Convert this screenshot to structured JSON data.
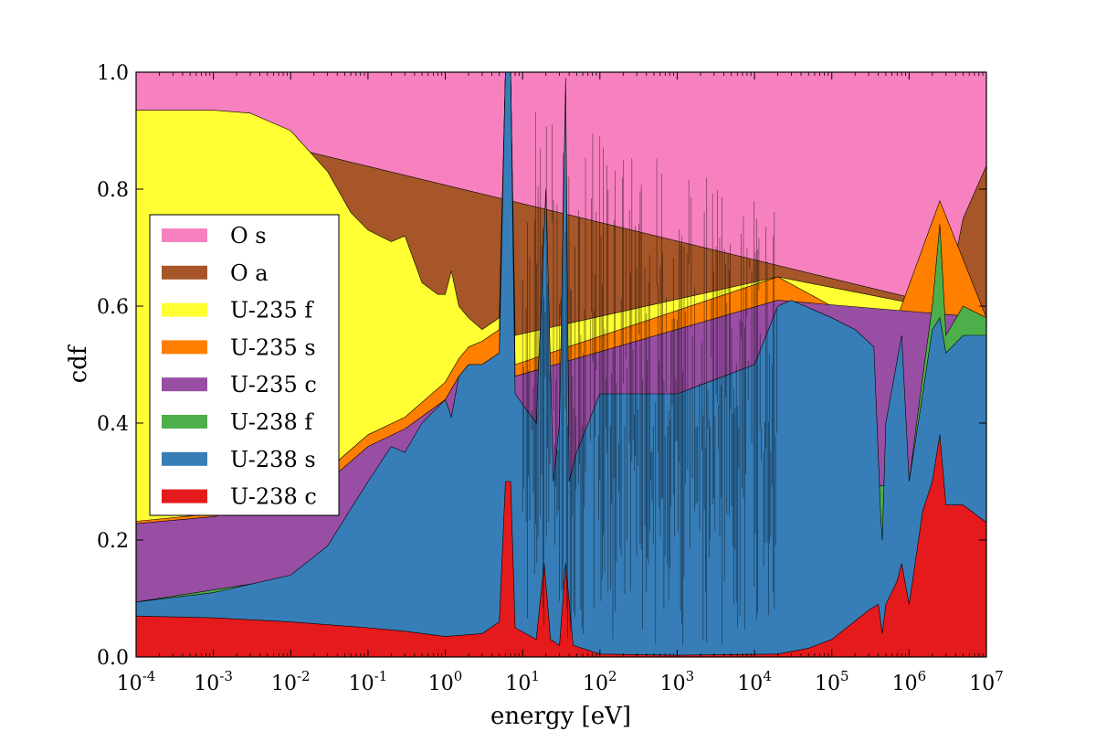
{
  "chart_data": {
    "type": "area",
    "xlabel": "energy [eV]",
    "ylabel": "cdf",
    "xscale": "log",
    "xlim": [
      0.0001,
      10000000
    ],
    "ylim": [
      0.0,
      1.0
    ],
    "x_ticks": [
      {
        "base": "10",
        "exp": "-4",
        "value": 0.0001
      },
      {
        "base": "10",
        "exp": "-3",
        "value": 0.001
      },
      {
        "base": "10",
        "exp": "-2",
        "value": 0.01
      },
      {
        "base": "10",
        "exp": "-1",
        "value": 0.1
      },
      {
        "base": "10",
        "exp": "0",
        "value": 1
      },
      {
        "base": "10",
        "exp": "1",
        "value": 10
      },
      {
        "base": "10",
        "exp": "2",
        "value": 100
      },
      {
        "base": "10",
        "exp": "3",
        "value": 1000
      },
      {
        "base": "10",
        "exp": "4",
        "value": 10000
      },
      {
        "base": "10",
        "exp": "5",
        "value": 100000
      },
      {
        "base": "10",
        "exp": "6",
        "value": 1000000
      },
      {
        "base": "10",
        "exp": "7",
        "value": 10000000
      }
    ],
    "y_ticks": [
      "0.0",
      "0.2",
      "0.4",
      "0.6",
      "0.8",
      "1.0"
    ],
    "y_tick_values": [
      0.0,
      0.2,
      0.4,
      0.6,
      0.8,
      1.0
    ],
    "legend_position": "center-left",
    "legend": [
      {
        "name": "O s",
        "color": "#f781bf"
      },
      {
        "name": "O a",
        "color": "#a65628"
      },
      {
        "name": "U-235 f",
        "color": "#ffff33"
      },
      {
        "name": "U-235 s",
        "color": "#ff7f00"
      },
      {
        "name": "U-235 c",
        "color": "#984ea3"
      },
      {
        "name": "U-238 f",
        "color": "#4daf4a"
      },
      {
        "name": "U-238 s",
        "color": "#377eb8"
      },
      {
        "name": "U-238 c",
        "color": "#e41a1c"
      }
    ],
    "cumulative_boundaries": [
      {
        "upper_of": "U-238 c",
        "color": "#e41a1c",
        "points": [
          [
            0.0001,
            0.07
          ],
          [
            0.001,
            0.067
          ],
          [
            0.01,
            0.06
          ],
          [
            0.1,
            0.05
          ],
          [
            0.3,
            0.044
          ],
          [
            1,
            0.035
          ],
          [
            3,
            0.04
          ],
          [
            5,
            0.06
          ],
          [
            6,
            0.3
          ],
          [
            7,
            0.3
          ],
          [
            8,
            0.05
          ],
          [
            15,
            0.03
          ],
          [
            19,
            0.16
          ],
          [
            23,
            0.03
          ],
          [
            30,
            0.02
          ],
          [
            36,
            0.16
          ],
          [
            45,
            0.02
          ],
          [
            100,
            0.005
          ],
          [
            1000,
            0.003
          ],
          [
            20000,
            0.005
          ],
          [
            50000,
            0.015
          ],
          [
            100000,
            0.03
          ],
          [
            300000,
            0.08
          ],
          [
            400000,
            0.09
          ],
          [
            450000,
            0.04
          ],
          [
            500000,
            0.09
          ],
          [
            700000,
            0.13
          ],
          [
            800000,
            0.16
          ],
          [
            1000000,
            0.09
          ],
          [
            1500000,
            0.25
          ],
          [
            2000000,
            0.3
          ],
          [
            2500000,
            0.38
          ],
          [
            3000000,
            0.26
          ],
          [
            5000000,
            0.26
          ],
          [
            10000000,
            0.23
          ]
        ]
      },
      {
        "upper_of": "U-238 s",
        "color": "#377eb8",
        "points": [
          [
            0.0001,
            0.094
          ],
          [
            0.001,
            0.11
          ],
          [
            0.01,
            0.14
          ],
          [
            0.03,
            0.19
          ],
          [
            0.1,
            0.3
          ],
          [
            0.2,
            0.36
          ],
          [
            0.3,
            0.35
          ],
          [
            0.5,
            0.4
          ],
          [
            1,
            0.44
          ],
          [
            1.2,
            0.41
          ],
          [
            1.5,
            0.48
          ],
          [
            2,
            0.5
          ],
          [
            3,
            0.5
          ],
          [
            5,
            0.52
          ],
          [
            6,
            1.0
          ],
          [
            7,
            1.0
          ],
          [
            8,
            0.45
          ],
          [
            15,
            0.4
          ],
          [
            20,
            0.8
          ],
          [
            25,
            0.3
          ],
          [
            30,
            0.4
          ],
          [
            36,
            0.99
          ],
          [
            40,
            0.3
          ],
          [
            50,
            0.35
          ],
          [
            100,
            0.45
          ],
          [
            1000,
            0.45
          ],
          [
            10000,
            0.5
          ],
          [
            20000,
            0.6
          ],
          [
            30000,
            0.61
          ],
          [
            100000,
            0.58
          ],
          [
            200000,
            0.56
          ],
          [
            350000,
            0.53
          ],
          [
            430000,
            0.24
          ],
          [
            450000,
            0.2
          ],
          [
            500000,
            0.4
          ],
          [
            800000,
            0.55
          ],
          [
            1000000,
            0.3
          ],
          [
            1500000,
            0.45
          ],
          [
            2000000,
            0.56
          ],
          [
            2500000,
            0.58
          ],
          [
            3000000,
            0.52
          ],
          [
            5000000,
            0.55
          ],
          [
            10000000,
            0.55
          ]
        ]
      },
      {
        "upper_of": "U-238 f",
        "color": "#4daf4a",
        "points": [
          [
            0.0001,
            0.094
          ],
          [
            1000000,
            0.3
          ],
          [
            1500000,
            0.48
          ],
          [
            2000000,
            0.6
          ],
          [
            2500000,
            0.74
          ],
          [
            3000000,
            0.55
          ],
          [
            5000000,
            0.6
          ],
          [
            10000000,
            0.58
          ]
        ]
      },
      {
        "upper_of": "U-235 c",
        "color": "#984ea3",
        "points": [
          [
            0.0001,
            0.228
          ],
          [
            0.001,
            0.24
          ],
          [
            0.01,
            0.27
          ],
          [
            0.03,
            0.3
          ],
          [
            0.1,
            0.36
          ],
          [
            0.3,
            0.39
          ],
          [
            1,
            0.44
          ],
          [
            1.5,
            0.48
          ],
          [
            2,
            0.5
          ],
          [
            3,
            0.5
          ],
          [
            5,
            0.52
          ],
          [
            6,
            1.0
          ],
          [
            7,
            1.0
          ],
          [
            8,
            0.48
          ],
          [
            20000,
            0.61
          ],
          [
            10000000,
            0.58
          ]
        ]
      },
      {
        "upper_of": "U-235 s",
        "color": "#ff7f00",
        "points": [
          [
            0.0001,
            0.232
          ],
          [
            0.001,
            0.245
          ],
          [
            0.01,
            0.28
          ],
          [
            0.03,
            0.32
          ],
          [
            0.1,
            0.38
          ],
          [
            0.3,
            0.41
          ],
          [
            1,
            0.47
          ],
          [
            1.5,
            0.51
          ],
          [
            2,
            0.53
          ],
          [
            3,
            0.54
          ],
          [
            5,
            0.56
          ],
          [
            6,
            1.0
          ],
          [
            7,
            1.0
          ],
          [
            8,
            0.5
          ],
          [
            20000,
            0.65
          ],
          [
            100000,
            0.6
          ],
          [
            300000,
            0.58
          ],
          [
            450000,
            0.2
          ],
          [
            700000,
            0.58
          ],
          [
            2500000,
            0.78
          ],
          [
            10000000,
            0.58
          ]
        ]
      },
      {
        "upper_of": "U-235 f",
        "color": "#ffff33",
        "points": [
          [
            0.0001,
            0.935
          ],
          [
            0.001,
            0.935
          ],
          [
            0.003,
            0.93
          ],
          [
            0.01,
            0.9
          ],
          [
            0.03,
            0.83
          ],
          [
            0.06,
            0.76
          ],
          [
            0.1,
            0.73
          ],
          [
            0.2,
            0.71
          ],
          [
            0.3,
            0.72
          ],
          [
            0.5,
            0.64
          ],
          [
            0.8,
            0.62
          ],
          [
            1,
            0.62
          ],
          [
            1.2,
            0.66
          ],
          [
            1.5,
            0.6
          ],
          [
            2,
            0.58
          ],
          [
            3,
            0.56
          ],
          [
            5,
            0.58
          ],
          [
            6,
            1.0
          ],
          [
            7,
            1.0
          ],
          [
            8,
            0.55
          ],
          [
            20000,
            0.65
          ],
          [
            10000000,
            0.58
          ]
        ]
      },
      {
        "upper_of": "O a",
        "color": "#a65628",
        "points": [
          [
            0.0001,
            0.935
          ],
          [
            3000000,
            0.6
          ],
          [
            5000000,
            0.75
          ],
          [
            10000000,
            0.84
          ]
        ]
      },
      {
        "upper_of": "O s",
        "color": "#f781bf",
        "points": [
          [
            0.0001,
            1.0
          ],
          [
            10000000,
            1.0
          ]
        ]
      }
    ],
    "resonance_band_x": [
      10,
      20000
    ]
  }
}
